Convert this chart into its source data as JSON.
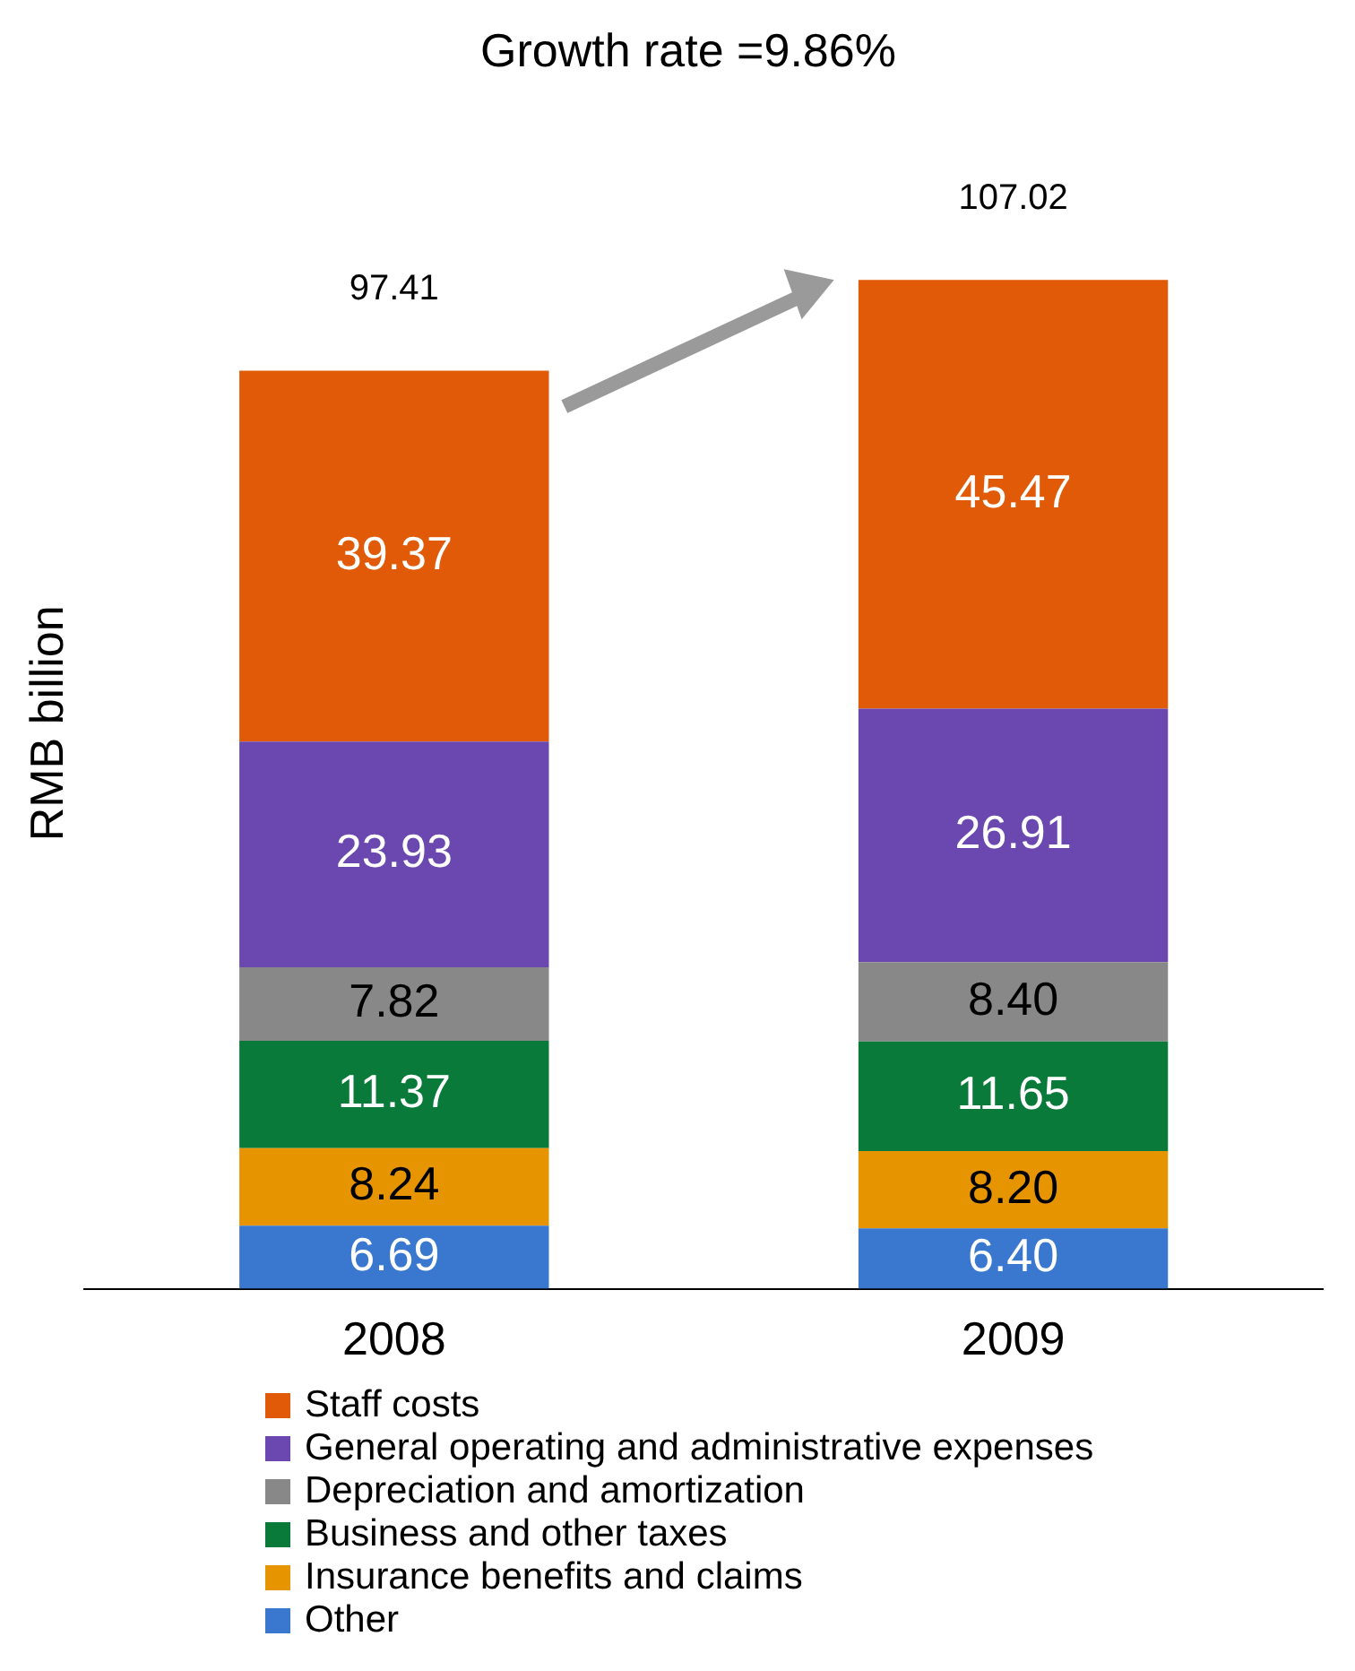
{
  "chart_data": {
    "type": "bar",
    "stacked": true,
    "ylabel": "RMB billion",
    "categories": [
      "2008",
      "2009"
    ],
    "series": [
      {
        "name": "Other",
        "color": "#3a78d0",
        "values": [
          6.69,
          6.4
        ],
        "value_labels": [
          "6.69",
          "6.40"
        ]
      },
      {
        "name": "Insurance benefits and claims",
        "color": "#e69500",
        "values": [
          8.24,
          8.2
        ],
        "value_labels": [
          "8.24",
          "8.20"
        ]
      },
      {
        "name": "Business and other taxes",
        "color": "#0a7a3a",
        "values": [
          11.37,
          11.65
        ],
        "value_labels": [
          "11.37",
          "11.65"
        ]
      },
      {
        "name": "Depreciation and amortization",
        "color": "#888888",
        "values": [
          7.82,
          8.4
        ],
        "value_labels": [
          "7.82",
          "8.40"
        ]
      },
      {
        "name": "General operating and administrative expenses",
        "color": "#6b48b0",
        "values": [
          23.93,
          26.91
        ],
        "value_labels": [
          "23.93",
          "26.91"
        ]
      },
      {
        "name": "Staff costs",
        "color": "#e05a08",
        "values": [
          39.37,
          45.47
        ],
        "value_labels": [
          "39.37",
          "45.47"
        ]
      }
    ],
    "totals": [
      "97.41",
      "107.02"
    ],
    "annotations": [
      "Growth rate =9.86%"
    ],
    "legend": "bottom",
    "grid": false
  }
}
